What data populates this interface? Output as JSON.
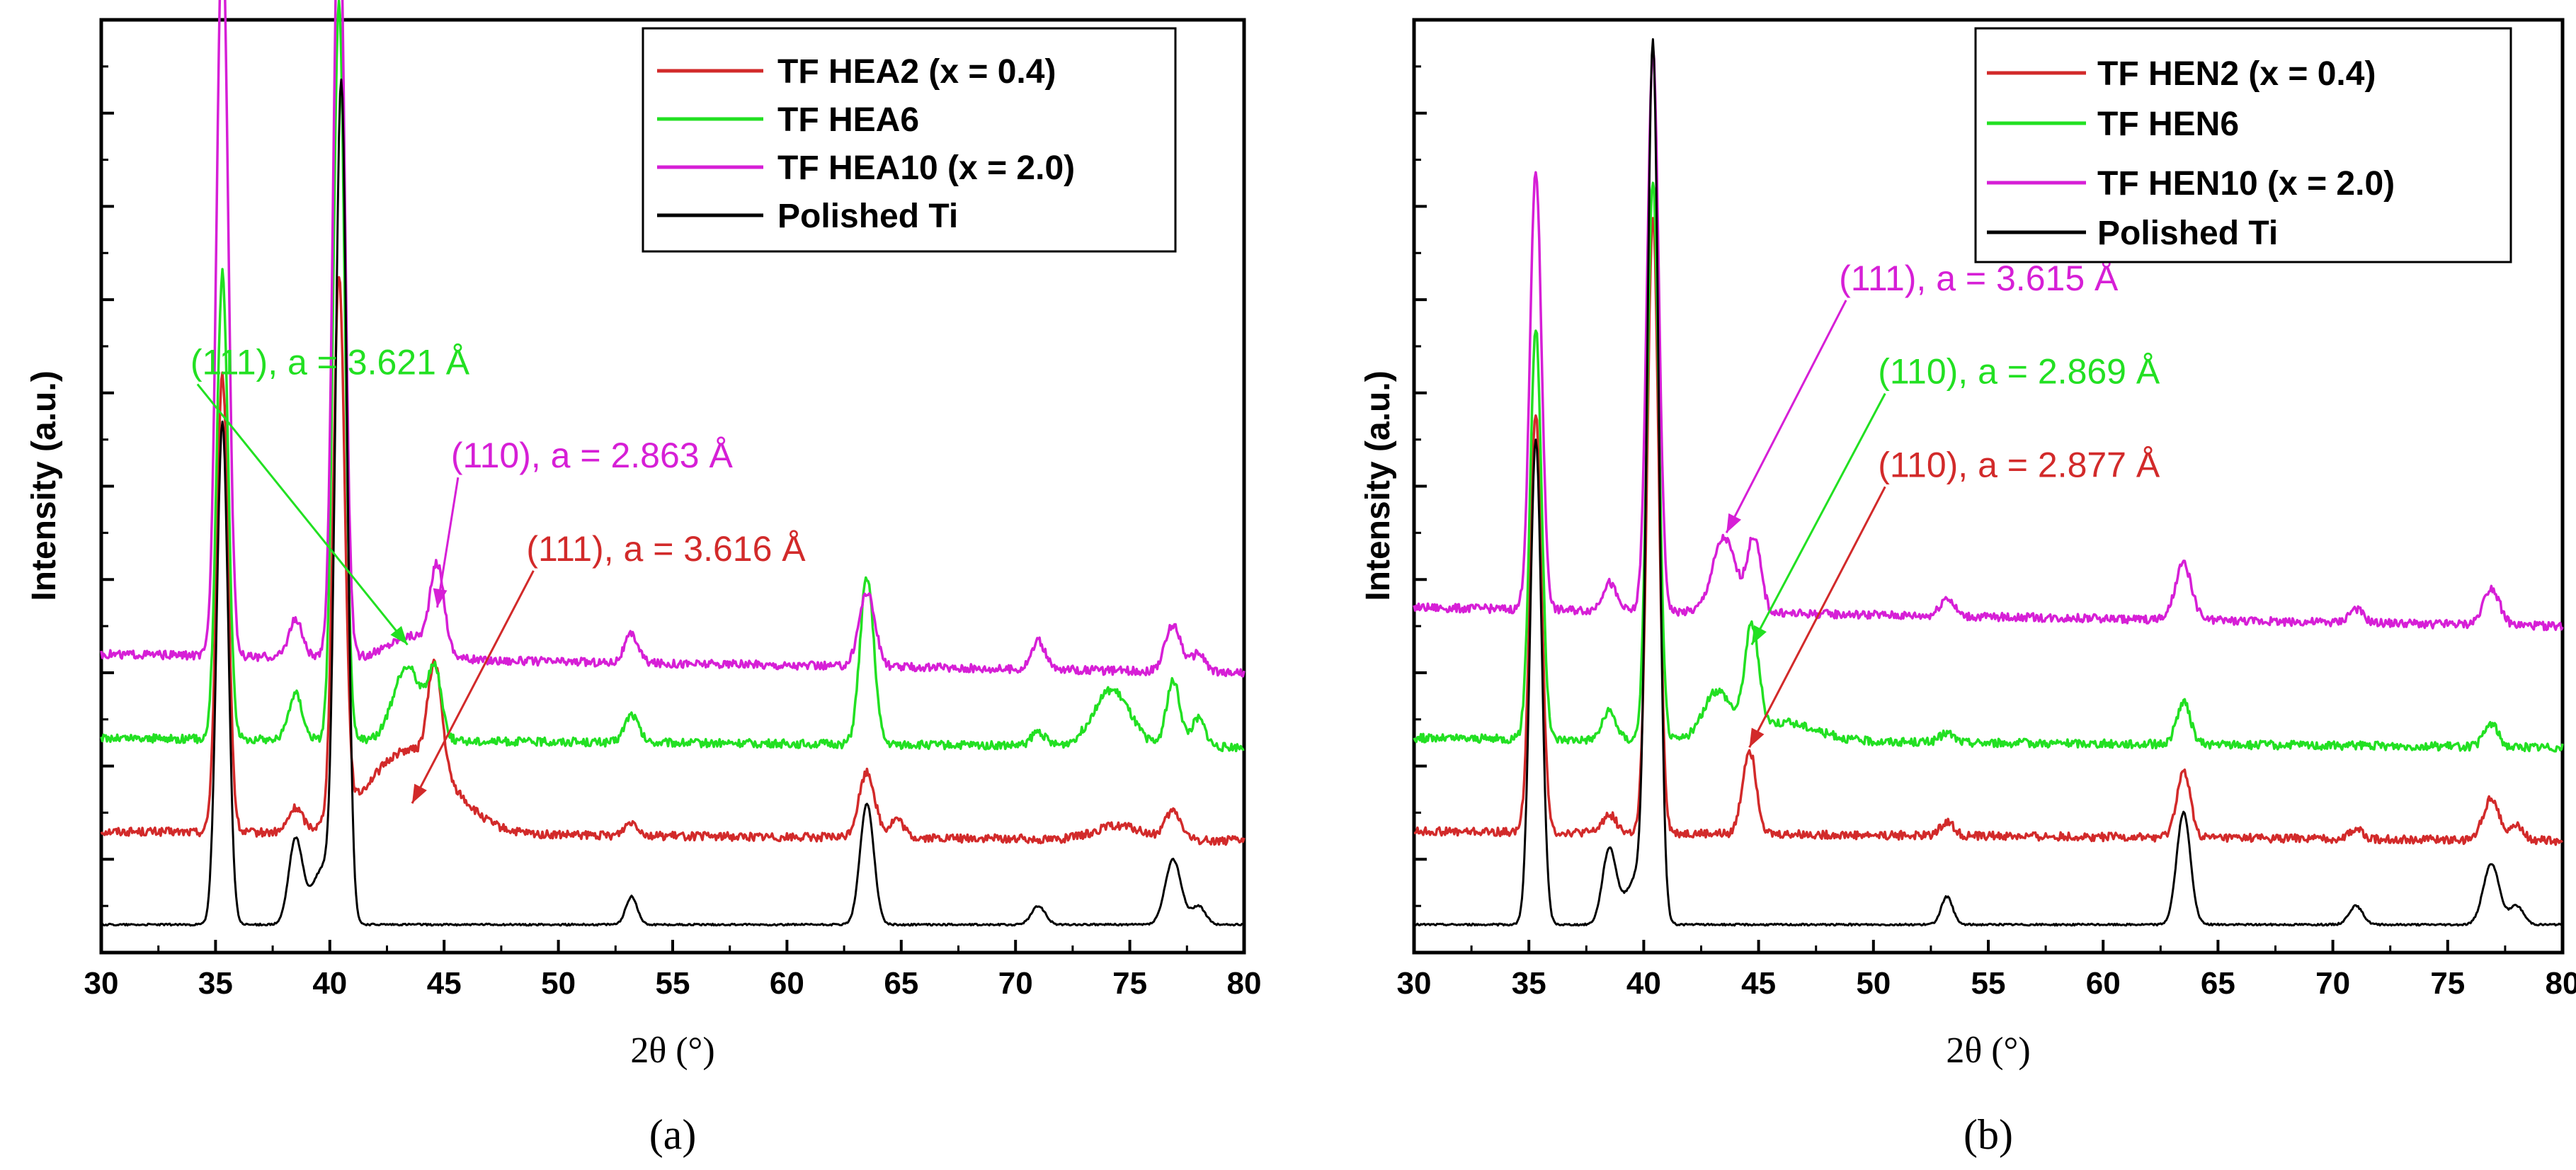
{
  "colors": {
    "red": "#d22a2a",
    "green": "#22e022",
    "magenta": "#d61fd6",
    "black": "#000000"
  },
  "chart_data": [
    {
      "id": "a",
      "type": "line",
      "caption": "(a)",
      "xlabel": "2θ (°)",
      "ylabel": "Intensity (a.u.)",
      "xlim": [
        30,
        80
      ],
      "ylim": [
        0,
        10
      ],
      "xticks": [
        "30",
        "35",
        "40",
        "45",
        "50",
        "55",
        "60",
        "65",
        "70",
        "75",
        "80"
      ],
      "legend": [
        "TF HEA2 (x = 0.4)",
        "TF HEA6",
        "TF HEA10 (x = 2.0)",
        "Polished Ti"
      ],
      "series": [
        {
          "name": "TF HEA2 (x = 0.4)",
          "color": "red",
          "baseline": 1.3,
          "tail": 1.2,
          "peaks": [
            [
              35.3,
              4.9,
              0.25
            ],
            [
              38.5,
              0.25,
              0.3
            ],
            [
              40.4,
              5.8,
              0.25
            ],
            [
              43.5,
              0.9,
              1.8
            ],
            [
              44.6,
              1.1,
              0.3
            ],
            [
              53.2,
              0.15,
              0.3
            ],
            [
              63.5,
              0.7,
              0.35
            ],
            [
              64.8,
              0.2,
              0.3
            ],
            [
              74.5,
              0.15,
              1.0
            ],
            [
              76.9,
              0.3,
              0.35
            ]
          ]
        },
        {
          "name": "TF HEA6",
          "color": "green",
          "baseline": 2.3,
          "tail": 2.2,
          "peaks": [
            [
              35.3,
              5.0,
              0.25
            ],
            [
              38.5,
              0.5,
              0.3
            ],
            [
              40.4,
              7.9,
              0.25
            ],
            [
              43.4,
              0.8,
              0.6
            ],
            [
              44.6,
              0.7,
              0.3
            ],
            [
              53.2,
              0.3,
              0.3
            ],
            [
              63.5,
              1.8,
              0.3
            ],
            [
              71.0,
              0.15,
              0.3
            ],
            [
              74.2,
              0.6,
              0.8
            ],
            [
              76.9,
              0.7,
              0.3
            ],
            [
              78.0,
              0.3,
              0.3
            ]
          ]
        },
        {
          "name": "TF HEA10 (x = 2.0)",
          "color": "magenta",
          "baseline": 3.2,
          "tail": 3.0,
          "peaks": [
            [
              35.3,
              7.9,
              0.25
            ],
            [
              38.5,
              0.4,
              0.3
            ],
            [
              40.4,
              8.5,
              0.25
            ],
            [
              43.6,
              0.25,
              1.0
            ],
            [
              44.7,
              0.9,
              0.3
            ],
            [
              53.2,
              0.3,
              0.3
            ],
            [
              63.5,
              0.8,
              0.35
            ],
            [
              71.0,
              0.3,
              0.3
            ],
            [
              76.9,
              0.5,
              0.35
            ],
            [
              78.0,
              0.2,
              0.3
            ]
          ]
        },
        {
          "name": "Polished Ti",
          "color": "black",
          "baseline": 0.3,
          "tail": 0.3,
          "peaks": [
            [
              35.3,
              5.4,
              0.25
            ],
            [
              38.5,
              0.9,
              0.3
            ],
            [
              39.7,
              0.6,
              0.5
            ],
            [
              40.5,
              8.9,
              0.25
            ],
            [
              53.2,
              0.3,
              0.25
            ],
            [
              63.5,
              1.3,
              0.3
            ],
            [
              71.0,
              0.2,
              0.3
            ],
            [
              76.9,
              0.7,
              0.35
            ],
            [
              78.0,
              0.2,
              0.3
            ]
          ]
        }
      ],
      "annotations": [
        {
          "text": "(111), a = 3.621 Å",
          "color": "green",
          "x": 33.9,
          "y": 6.2,
          "arrow_to": [
            43.4,
            3.3
          ]
        },
        {
          "text": "(110), a = 2.863 Å",
          "color": "magenta",
          "x": 45.3,
          "y": 5.2,
          "arrow_to": [
            44.7,
            3.7
          ]
        },
        {
          "text": "(111), a = 3.616 Å",
          "color": "red",
          "x": 48.6,
          "y": 4.2,
          "arrow_to": [
            43.6,
            1.6
          ]
        }
      ]
    },
    {
      "id": "b",
      "type": "line",
      "caption": "(b)",
      "xlabel": "2θ (°)",
      "ylabel": "Intensity (a.u.)",
      "xlim": [
        30,
        80
      ],
      "ylim": [
        0,
        10
      ],
      "xticks": [
        "30",
        "35",
        "40",
        "45",
        "50",
        "55",
        "60",
        "65",
        "70",
        "75",
        "80"
      ],
      "legend": [
        "TF HEN2 (x = 0.4)",
        "TF HEN6",
        "TF HEN10 (x = 2.0)",
        "Polished Ti"
      ],
      "series": [
        {
          "name": "TF HEN2 (x = 0.4)",
          "color": "red",
          "baseline": 1.3,
          "tail": 1.2,
          "peaks": [
            [
              35.3,
              4.5,
              0.25
            ],
            [
              38.5,
              0.2,
              0.3
            ],
            [
              40.4,
              6.6,
              0.25
            ],
            [
              44.6,
              0.9,
              0.3
            ],
            [
              53.2,
              0.15,
              0.3
            ],
            [
              63.5,
              0.7,
              0.3
            ],
            [
              71.0,
              0.1,
              0.3
            ],
            [
              76.9,
              0.45,
              0.35
            ],
            [
              78.0,
              0.15,
              0.3
            ]
          ]
        },
        {
          "name": "TF HEN6",
          "color": "green",
          "baseline": 2.3,
          "tail": 2.2,
          "peaks": [
            [
              35.3,
              4.4,
              0.25
            ],
            [
              38.5,
              0.3,
              0.3
            ],
            [
              40.4,
              6.0,
              0.25
            ],
            [
              43.2,
              0.5,
              0.6
            ],
            [
              44.7,
              1.1,
              0.3
            ],
            [
              46.0,
              0.2,
              1.5
            ],
            [
              53.2,
              0.1,
              0.3
            ],
            [
              63.5,
              0.45,
              0.3
            ],
            [
              76.9,
              0.25,
              0.3
            ]
          ]
        },
        {
          "name": "TF HEN10 (x = 2.0)",
          "color": "magenta",
          "baseline": 3.7,
          "tail": 3.5,
          "peaks": [
            [
              35.3,
              4.7,
              0.25
            ],
            [
              38.5,
              0.3,
              0.3
            ],
            [
              40.4,
              6.0,
              0.25
            ],
            [
              43.5,
              0.8,
              0.5
            ],
            [
              44.8,
              0.8,
              0.3
            ],
            [
              53.2,
              0.2,
              0.3
            ],
            [
              63.5,
              0.6,
              0.35
            ],
            [
              71.0,
              0.15,
              0.3
            ],
            [
              76.9,
              0.4,
              0.35
            ]
          ]
        },
        {
          "name": "Polished Ti",
          "color": "black",
          "baseline": 0.3,
          "tail": 0.3,
          "peaks": [
            [
              35.3,
              5.2,
              0.25
            ],
            [
              38.5,
              0.8,
              0.3
            ],
            [
              39.7,
              0.5,
              0.5
            ],
            [
              40.4,
              9.3,
              0.25
            ],
            [
              53.2,
              0.3,
              0.25
            ],
            [
              63.5,
              1.2,
              0.3
            ],
            [
              71.0,
              0.2,
              0.3
            ],
            [
              76.9,
              0.65,
              0.35
            ],
            [
              78.0,
              0.2,
              0.3
            ]
          ]
        }
      ],
      "annotations": [
        {
          "text": "(111), a = 3.615 Å",
          "color": "magenta",
          "x": 48.5,
          "y": 7.1,
          "arrow_to": [
            43.6,
            4.5
          ]
        },
        {
          "text": "(110), a = 2.869 Å",
          "color": "green",
          "x": 50.2,
          "y": 6.1,
          "arrow_to": [
            44.7,
            3.3
          ]
        },
        {
          "text": "(110), a = 2.877 Å",
          "color": "red",
          "x": 50.2,
          "y": 5.1,
          "arrow_to": [
            44.6,
            2.2
          ]
        }
      ]
    }
  ]
}
